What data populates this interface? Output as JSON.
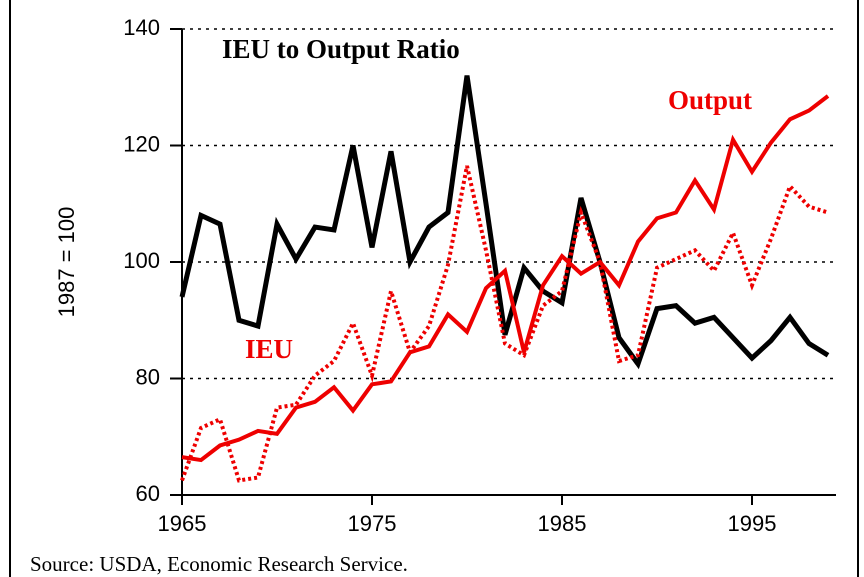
{
  "chart_data": {
    "type": "line",
    "ylabel": "1987 = 100",
    "source": "Source: USDA, Economic Research Service.",
    "annotations": [
      {
        "text": "IEU to Output Ratio",
        "color": "#000000"
      },
      {
        "text": "Output",
        "color": "#ee0000"
      },
      {
        "text": "IEU",
        "color": "#ee0000"
      }
    ],
    "x": [
      1965,
      1966,
      1967,
      1968,
      1969,
      1970,
      1971,
      1972,
      1973,
      1974,
      1975,
      1976,
      1977,
      1978,
      1979,
      1980,
      1981,
      1982,
      1983,
      1984,
      1985,
      1986,
      1987,
      1988,
      1989,
      1990,
      1991,
      1992,
      1993,
      1994,
      1995,
      1996,
      1997,
      1998,
      1999
    ],
    "xlim": [
      1965,
      1999
    ],
    "xticks": [
      1965,
      1975,
      1985,
      1995
    ],
    "ylim": [
      60,
      140
    ],
    "yticks": [
      60,
      80,
      100,
      120,
      140
    ],
    "grid": true,
    "series": [
      {
        "name": "IEU to Output Ratio",
        "color": "#000000",
        "style": "solid",
        "values": [
          94,
          108,
          106.5,
          90,
          89,
          106.5,
          100.5,
          106,
          105.5,
          120,
          102.5,
          119,
          100,
          106,
          108.5,
          132,
          110,
          87.5,
          99,
          95,
          93,
          111,
          100,
          87,
          82.5,
          92,
          92.5,
          89.5,
          90.5,
          87,
          83.5,
          86.5,
          90.5,
          86,
          84
        ]
      },
      {
        "name": "Output",
        "color": "#ee0000",
        "style": "solid",
        "values": [
          66.5,
          66,
          68.5,
          69.5,
          71,
          70.5,
          75,
          76,
          78.5,
          74.5,
          79,
          79.5,
          84.5,
          85.5,
          91,
          88,
          95.5,
          98.5,
          84.5,
          96,
          101,
          98,
          100,
          96,
          103.5,
          107.5,
          108.5,
          114,
          109,
          121,
          115.5,
          120.5,
          124.5,
          126,
          128.5
        ]
      },
      {
        "name": "IEU",
        "color": "#ee0000",
        "style": "dotted",
        "values": [
          62.5,
          71.5,
          73,
          62.5,
          63,
          75,
          75.5,
          80.5,
          83,
          89.5,
          80.5,
          95,
          84.5,
          89,
          99.5,
          116.5,
          102,
          86,
          84,
          92.5,
          95,
          108.5,
          100,
          83,
          84,
          99,
          100.5,
          102,
          98.5,
          105,
          96,
          104,
          113,
          109.5,
          108.5
        ]
      }
    ]
  }
}
